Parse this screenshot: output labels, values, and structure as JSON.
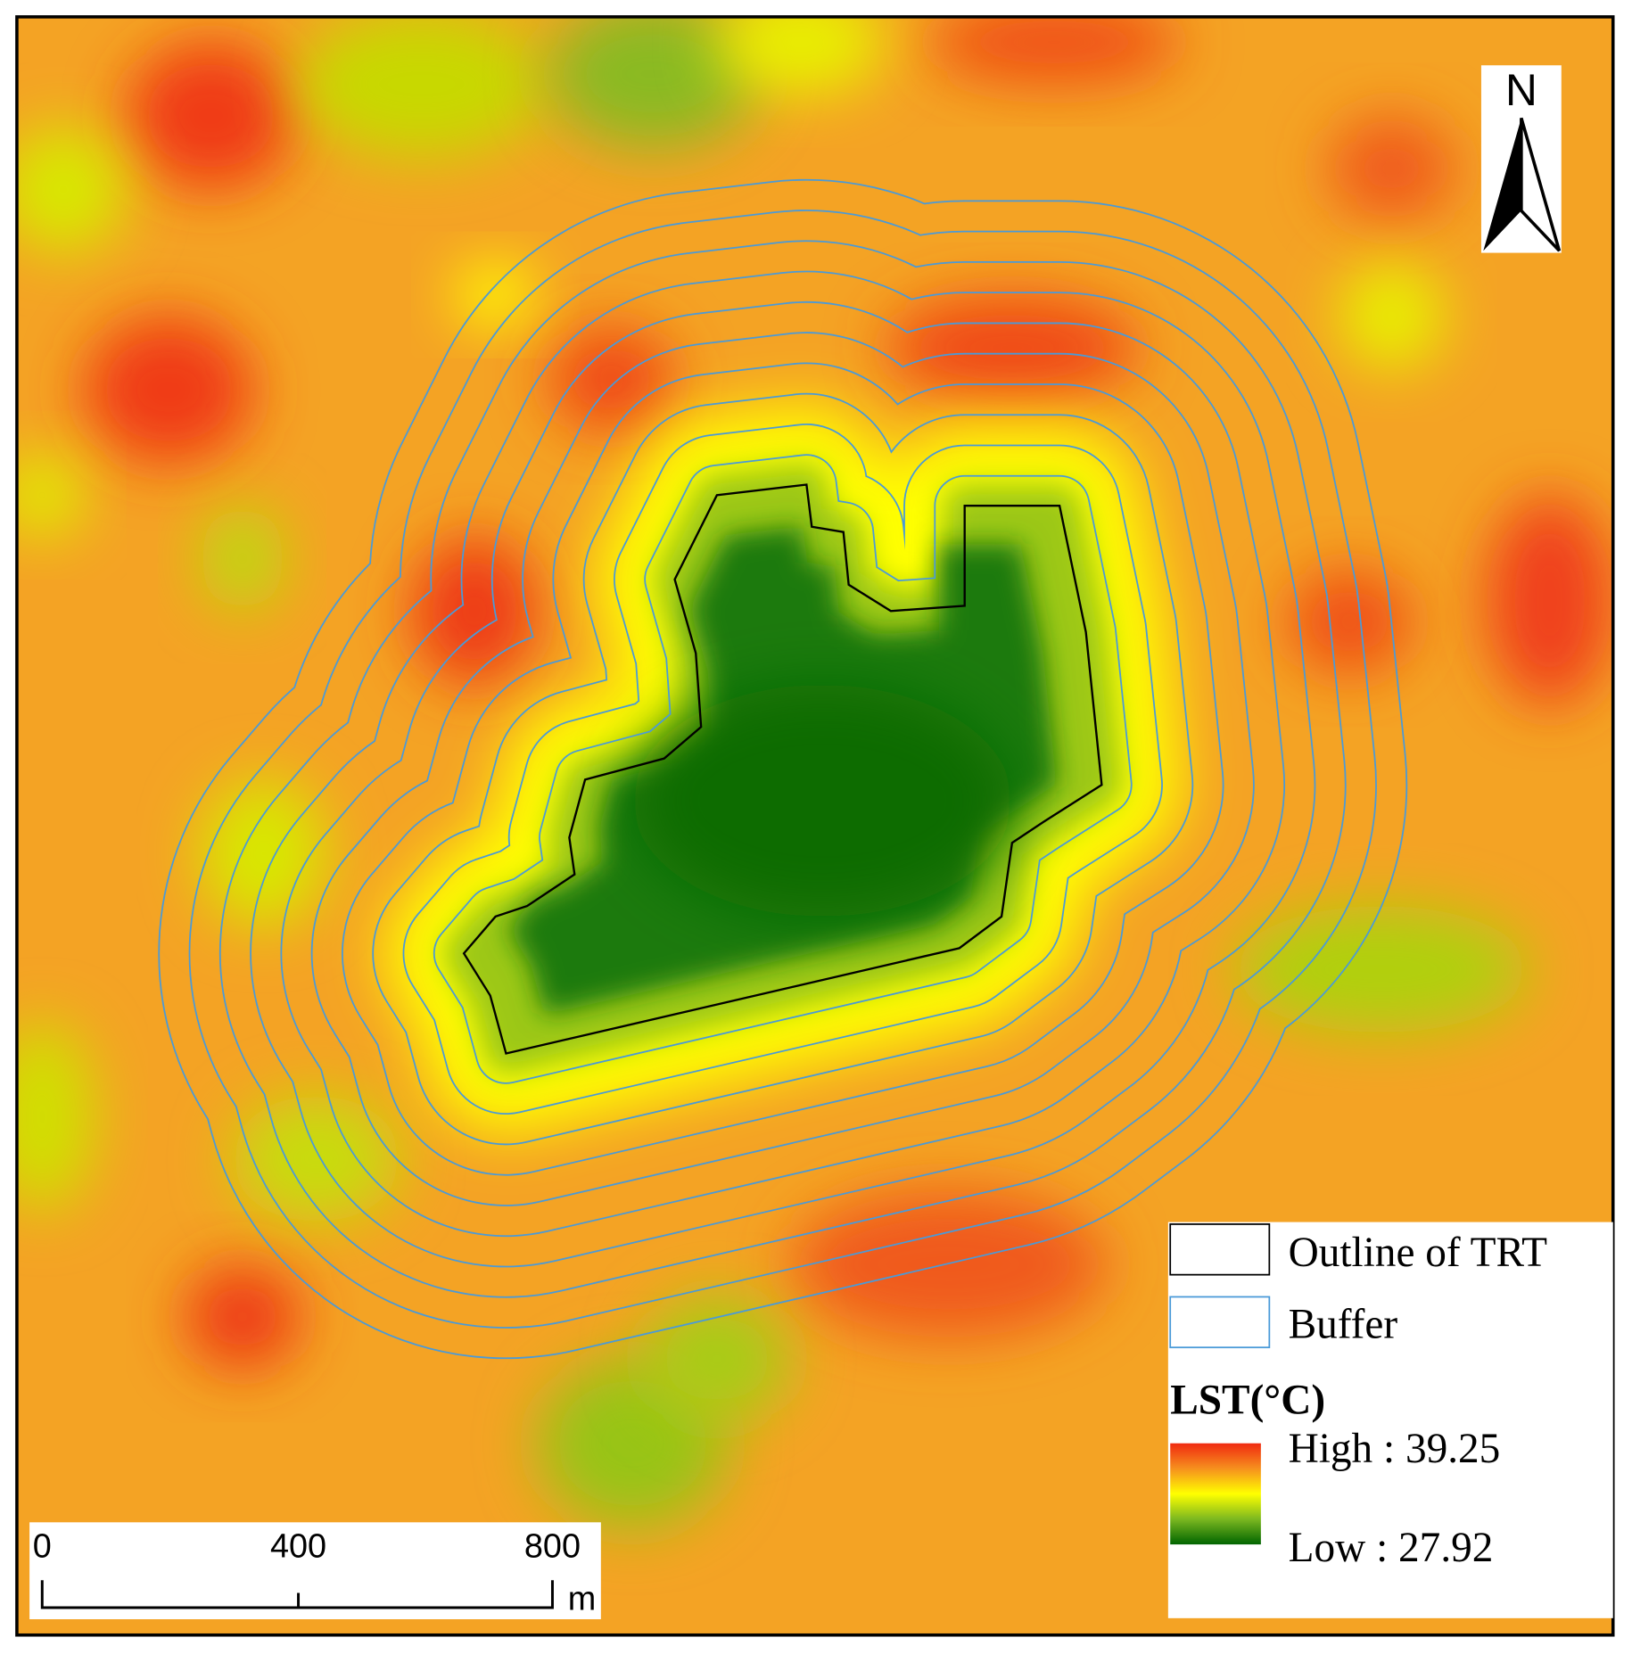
{
  "north": "N",
  "legend": {
    "items": [
      "Outline of TRT",
      "Buffer"
    ],
    "title": "LST(°C)",
    "high": "High : 39.25",
    "low": "Low : 27.92"
  },
  "scale_bar": {
    "ticks": [
      "0",
      "400",
      "800"
    ],
    "unit": "m"
  }
}
